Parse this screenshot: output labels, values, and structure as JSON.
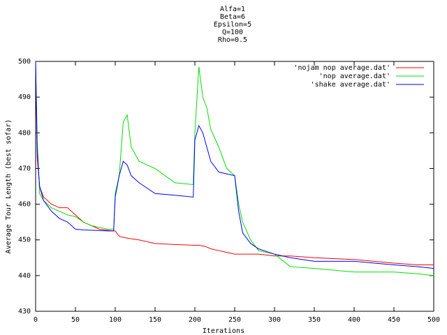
{
  "chart_data": {
    "type": "line",
    "title": [
      "Alfa=1",
      "Beta=6",
      "Epsilon=5",
      "Q=100",
      "Rho=0.5"
    ],
    "x_label": "Iterations",
    "y_label": "Average Tour Length (best sofar)",
    "x": [
      0,
      2,
      5,
      10,
      20,
      30,
      40,
      50,
      60,
      70,
      80,
      90,
      98,
      100,
      105,
      110,
      115,
      120,
      130,
      150,
      175,
      198,
      200,
      205,
      210,
      215,
      220,
      230,
      240,
      250,
      255,
      260,
      270,
      280,
      300,
      320,
      350,
      400,
      450,
      480,
      500
    ],
    "series": [
      {
        "name": "'nojam nop average.dat'",
        "color": "#ff0000",
        "values": [
          500,
          473,
          465,
          462,
          460,
          459,
          459,
          457,
          455,
          454,
          453,
          452.7,
          452.5,
          452.5,
          451,
          450.7,
          450.5,
          450.3,
          450,
          449,
          448.7,
          448.5,
          448.5,
          448.5,
          448.3,
          448,
          447.5,
          447,
          446.5,
          446,
          446,
          446,
          446,
          446,
          445.5,
          445.5,
          445,
          444.5,
          443.5,
          443,
          443
        ]
      },
      {
        "name": "'nop average.dat'",
        "color": "#00e000",
        "values": [
          500,
          478,
          463,
          461,
          459,
          458,
          457,
          456.5,
          455,
          454,
          453.5,
          453,
          453,
          463,
          468,
          483,
          485,
          476,
          472,
          470,
          466,
          465.5,
          480,
          498.5,
          490,
          487,
          481,
          476,
          470,
          468,
          460,
          455,
          450,
          447,
          446,
          442.5,
          442,
          441,
          441,
          440.5,
          440
        ]
      },
      {
        "name": "'shake average.dat'",
        "color": "#0000ff",
        "values": [
          500,
          475,
          465,
          461,
          458,
          456,
          455,
          453,
          452.8,
          452.7,
          452.6,
          452.5,
          452.5,
          462,
          468,
          472,
          471,
          468,
          466,
          463,
          462.5,
          462,
          478,
          482,
          480,
          476,
          472,
          469,
          468.5,
          468,
          458,
          452,
          449,
          447.5,
          446,
          445,
          444,
          444,
          443,
          442.5,
          442
        ]
      }
    ],
    "xlim": [
      0,
      500
    ],
    "xticks": [
      0,
      50,
      100,
      150,
      200,
      250,
      300,
      350,
      400,
      450,
      500
    ],
    "ylim": [
      430,
      500
    ],
    "yticks": [
      430,
      440,
      450,
      460,
      470,
      480,
      490,
      500
    ],
    "legend": "top-right"
  }
}
